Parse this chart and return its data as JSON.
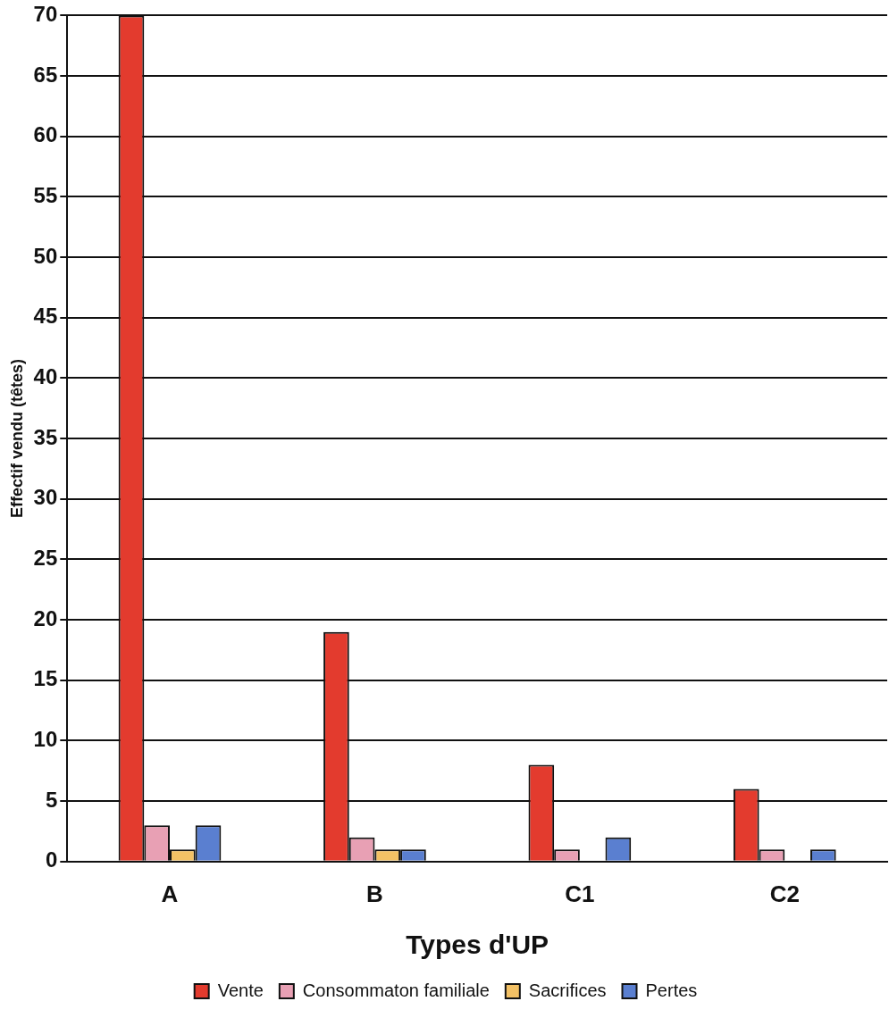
{
  "chart_data": {
    "type": "bar",
    "xlabel": "Types d'UP",
    "ylabel": "Effectif vendu (têtes)",
    "categories": [
      "A",
      "B",
      "C1",
      "C2"
    ],
    "series": [
      {
        "name": "Vente",
        "color": "#e33b2e",
        "values": [
          70,
          19,
          8,
          6
        ]
      },
      {
        "name": "Consommaton familiale",
        "color": "#e8a0b4",
        "values": [
          3,
          2,
          1,
          1
        ]
      },
      {
        "name": "Sacrifices",
        "color": "#f3c165",
        "values": [
          1,
          1,
          0,
          0
        ]
      },
      {
        "name": "Pertes",
        "color": "#5a7fd0",
        "values": [
          3,
          1,
          2,
          1
        ]
      }
    ],
    "ylim": [
      0,
      70
    ],
    "yticks": [
      0,
      5,
      10,
      15,
      20,
      25,
      30,
      35,
      40,
      45,
      50,
      55,
      60,
      65,
      70
    ],
    "grid": "y",
    "legend": "bottom"
  }
}
